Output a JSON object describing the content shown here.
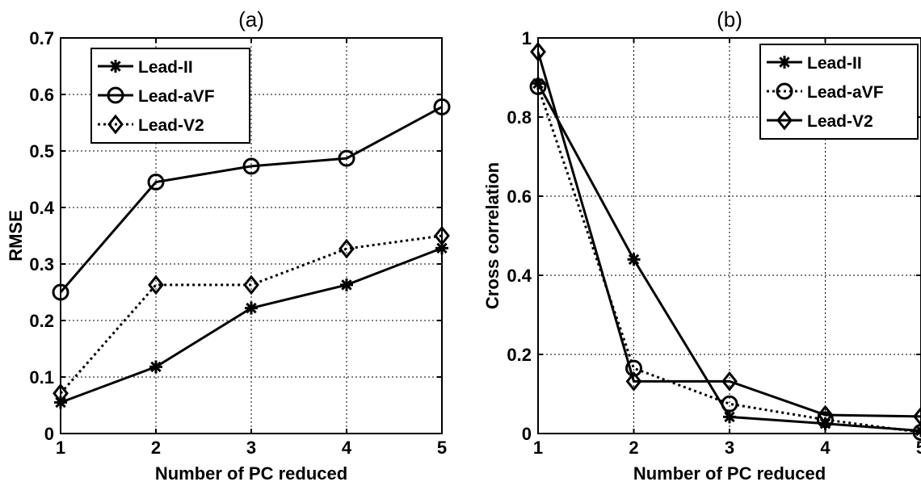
{
  "chart_data": [
    {
      "type": "line",
      "title": "(a)",
      "xlabel": "Number of PC reduced",
      "ylabel": "RMSE",
      "x": [
        1,
        2,
        3,
        4,
        5
      ],
      "xlim": [
        1,
        5
      ],
      "ylim": [
        0,
        0.7
      ],
      "xticks": [
        "1",
        "2",
        "3",
        "4",
        "5"
      ],
      "yticks": [
        "0",
        "0.1",
        "0.2",
        "0.3",
        "0.4",
        "0.5",
        "0.6",
        "0.7"
      ],
      "grid": true,
      "legend": "top-left",
      "series": [
        {
          "name": "Lead-II",
          "values": [
            0.055,
            0.118,
            0.222,
            0.263,
            0.328
          ],
          "marker": "asterisk",
          "dash": "solid"
        },
        {
          "name": "Lead-aVF",
          "values": [
            0.25,
            0.445,
            0.473,
            0.487,
            0.578
          ],
          "marker": "circle",
          "dash": "solid"
        },
        {
          "name": "Lead-V2",
          "values": [
            0.071,
            0.263,
            0.263,
            0.327,
            0.35
          ],
          "marker": "diamond",
          "dash": "dotted"
        }
      ]
    },
    {
      "type": "line",
      "title": "(b)",
      "xlabel": "Number of PC reduced",
      "ylabel": "Cross correlation",
      "x": [
        1,
        2,
        3,
        4,
        5
      ],
      "xlim": [
        1,
        5
      ],
      "ylim": [
        0,
        1
      ],
      "xticks": [
        "1",
        "2",
        "3",
        "4",
        "5"
      ],
      "yticks": [
        "0",
        "0.2",
        "0.4",
        "0.6",
        "0.8",
        "1"
      ],
      "grid": true,
      "legend": "top-right",
      "series": [
        {
          "name": "Lead-II",
          "values": [
            0.885,
            0.44,
            0.042,
            0.025,
            0.007
          ],
          "marker": "asterisk",
          "dash": "solid"
        },
        {
          "name": "Lead-aVF",
          "values": [
            0.877,
            0.165,
            0.075,
            0.035,
            0.003
          ],
          "marker": "circle",
          "dash": "dotted"
        },
        {
          "name": "Lead-V2",
          "values": [
            0.965,
            0.132,
            0.132,
            0.047,
            0.043
          ],
          "marker": "diamond",
          "dash": "solid"
        }
      ]
    }
  ]
}
